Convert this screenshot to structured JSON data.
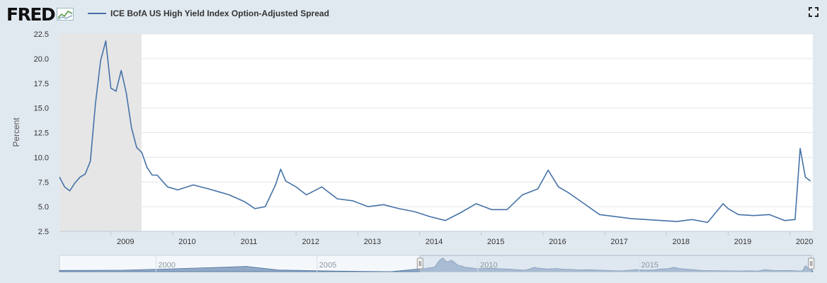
{
  "logo": {
    "text": "FRED"
  },
  "fullscreen_icon": "expand-icon",
  "chart_data": {
    "type": "line",
    "series": [
      {
        "name": "ICE BofA US High Yield Index Option-Adjusted Spread",
        "color": "#4572a7",
        "x": [
          "2008-03",
          "2008-04",
          "2008-05",
          "2008-06",
          "2008-07",
          "2008-08",
          "2008-09",
          "2008-10",
          "2008-11",
          "2008-12",
          "2009-01",
          "2009-02",
          "2009-03",
          "2009-04",
          "2009-05",
          "2009-06",
          "2009-07",
          "2009-08",
          "2009-09",
          "2009-10",
          "2009-11",
          "2009-12",
          "2010-02",
          "2010-05",
          "2010-08",
          "2010-10",
          "2010-12",
          "2011-03",
          "2011-05",
          "2011-07",
          "2011-09",
          "2011-10",
          "2011-11",
          "2012-01",
          "2012-03",
          "2012-06",
          "2012-09",
          "2012-12",
          "2013-03",
          "2013-06",
          "2013-09",
          "2013-12",
          "2014-03",
          "2014-06",
          "2014-09",
          "2014-12",
          "2015-03",
          "2015-06",
          "2015-09",
          "2015-12",
          "2016-02",
          "2016-04",
          "2016-06",
          "2016-09",
          "2016-12",
          "2017-03",
          "2017-06",
          "2017-09",
          "2017-12",
          "2018-03",
          "2018-06",
          "2018-09",
          "2018-12",
          "2019-01",
          "2019-03",
          "2019-06",
          "2019-09",
          "2019-12",
          "2020-02",
          "2020-03",
          "2020-04",
          "2020-05"
        ],
        "values": [
          8.0,
          7.0,
          6.6,
          7.4,
          8.0,
          8.3,
          9.6,
          15.5,
          19.8,
          21.8,
          17.0,
          16.7,
          18.8,
          16.5,
          13.0,
          11.0,
          10.5,
          9.0,
          8.2,
          8.2,
          7.6,
          7.0,
          6.7,
          7.2,
          6.8,
          6.5,
          6.2,
          5.5,
          4.8,
          5.0,
          7.2,
          8.8,
          7.6,
          7.0,
          6.2,
          7.0,
          5.8,
          5.6,
          5.0,
          5.2,
          4.8,
          4.5,
          4.0,
          3.6,
          4.4,
          5.3,
          4.7,
          4.7,
          6.2,
          6.8,
          8.7,
          7.0,
          6.4,
          5.3,
          4.2,
          4.0,
          3.8,
          3.7,
          3.6,
          3.5,
          3.7,
          3.4,
          5.3,
          4.8,
          4.2,
          4.1,
          4.2,
          3.6,
          3.7,
          10.9,
          8.0,
          7.6
        ]
      }
    ],
    "ylabel": "Percent",
    "ylim": [
      2.5,
      22.5
    ],
    "yticks": [
      "2.5",
      "5.0",
      "7.5",
      "10.0",
      "12.5",
      "15.0",
      "17.5",
      "20.0",
      "22.5"
    ],
    "xlim": [
      "2008-03-01",
      "2020-05-15"
    ],
    "xticks": [
      "2009",
      "2010",
      "2011",
      "2012",
      "2013",
      "2014",
      "2015",
      "2016",
      "2017",
      "2018",
      "2019",
      "2020"
    ],
    "recession_shading": {
      "start": "2008-03-01",
      "end": "2009-06-30",
      "color": "#e6e6e6"
    },
    "grid": true,
    "legend": "top-left",
    "navigator": {
      "labels": [
        "2000",
        "2005",
        "2010",
        "2015"
      ],
      "label_years": [
        2000,
        2005,
        2010,
        2015
      ],
      "range_start": 1997,
      "range_end": 2020.4,
      "selected_start": 2008.2,
      "selected_end": 2020.35,
      "fill_color": "#6f8fb5",
      "mask_color": "#c5d3e2"
    }
  }
}
